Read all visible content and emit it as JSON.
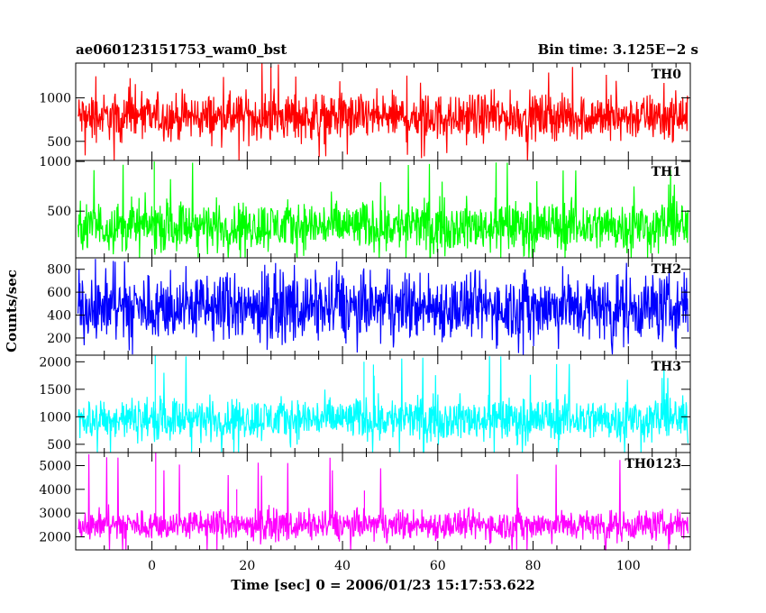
{
  "header": {
    "title": "ae060123151753_wam0_bst",
    "bin_time": "Bin time: 3.125E−2 s"
  },
  "chart_data": {
    "type": "line",
    "xlabel": "Time [sec] 0 = 2006/01/23 15:17:53.622",
    "ylabel": "Counts/sec",
    "xlim": [
      -16,
      113
    ],
    "x_ticks": [
      0,
      20,
      40,
      60,
      80,
      100
    ],
    "x_tick_labels": [
      "0",
      "20",
      "40",
      "60",
      "80",
      "100"
    ],
    "x_data_range": [
      -15.5,
      112.5
    ],
    "grid": false,
    "panels": [
      {
        "name": "TH0",
        "color": "#ff0000",
        "ylim": [
          280,
          1400
        ],
        "y_ticks": [
          500,
          1000
        ],
        "y_tick_labels": [
          "500",
          "1000"
        ],
        "series_summary": {
          "mean": 780,
          "typical_min": 380,
          "typical_max": 1150,
          "spike_max": 1400
        }
      },
      {
        "name": "TH1",
        "color": "#00ff00",
        "ylim": [
          30,
          1010
        ],
        "y_ticks": [
          500,
          1000
        ],
        "y_tick_labels": [
          "500",
          "1000"
        ],
        "series_summary": {
          "mean": 350,
          "typical_min": 150,
          "typical_max": 700,
          "spike_max": 1000
        },
        "spikes": [
          {
            "x": 0.5,
            "y": 1000
          }
        ]
      },
      {
        "name": "TH2",
        "color": "#0000ff",
        "ylim": [
          50,
          900
        ],
        "y_ticks": [
          200,
          400,
          600,
          800
        ],
        "y_tick_labels": [
          "200",
          "400",
          "600",
          "800"
        ],
        "series_summary": {
          "mean": 470,
          "typical_min": 120,
          "typical_max": 880,
          "spike_max": 900
        }
      },
      {
        "name": "TH3",
        "color": "#00ffff",
        "ylim": [
          350,
          2120
        ],
        "y_ticks": [
          500,
          1000,
          1500,
          2000
        ],
        "y_tick_labels": [
          "500",
          "1000",
          "1500",
          "2000"
        ],
        "series_summary": {
          "mean": 960,
          "typical_min": 560,
          "typical_max": 1500,
          "spike_max": 2120
        },
        "spikes": [
          {
            "x": 0.7,
            "y": 2120
          },
          {
            "x": 44.5,
            "y": 2000
          },
          {
            "x": 46.5,
            "y": 1950
          }
        ]
      },
      {
        "name": "TH0123",
        "color": "#ff00ff",
        "ylim": [
          1450,
          5550
        ],
        "y_ticks": [
          2000,
          3000,
          4000,
          5000
        ],
        "y_tick_labels": [
          "2000",
          "3000",
          "4000",
          "5000"
        ],
        "series_summary": {
          "mean": 2500,
          "typical_min": 1800,
          "typical_max": 3400,
          "spike_max": 5550
        },
        "spikes": [
          {
            "x": 0.8,
            "y": 5550
          },
          {
            "x": 17.8,
            "y": 4000
          },
          {
            "x": 44.6,
            "y": 3950
          }
        ]
      }
    ]
  }
}
